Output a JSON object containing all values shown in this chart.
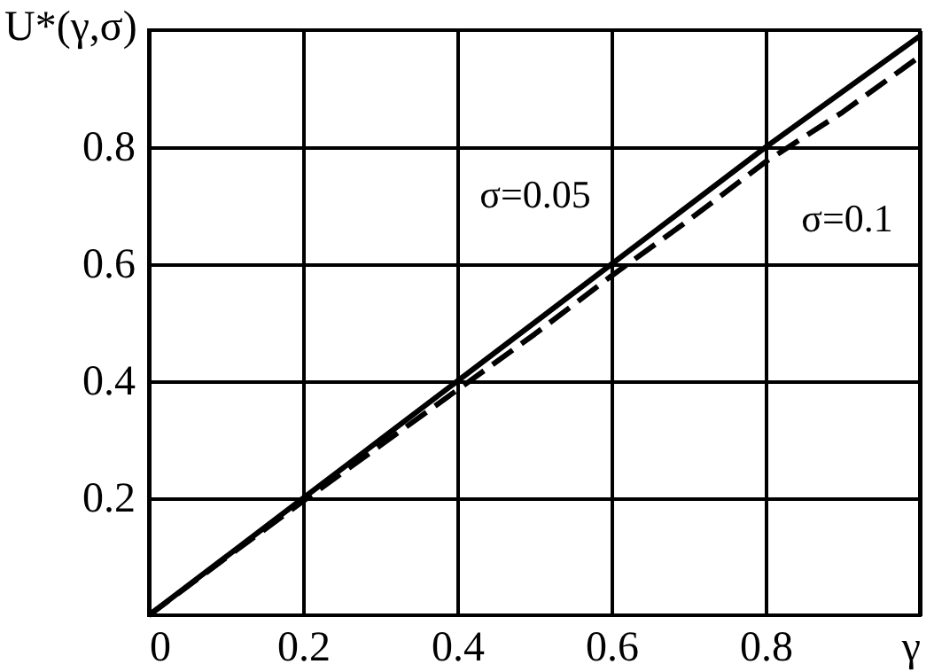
{
  "chart_data": {
    "type": "line",
    "ylabel": "U*(γ,σ)",
    "xlim": [
      0,
      1
    ],
    "ylim": [
      0,
      1
    ],
    "xticks": [
      0,
      0.2,
      0.4,
      0.6,
      0.8,
      {
        "value": 1,
        "label": "γ"
      }
    ],
    "yticks": [
      0.2,
      0.4,
      0.6,
      0.8
    ],
    "grid": true,
    "legend": false,
    "series": [
      {
        "name": "σ=0.05",
        "color": "#000000",
        "line_style": "solid",
        "x": [
          0,
          0.1,
          0.2,
          0.3,
          0.4,
          0.5,
          0.6,
          0.7,
          0.8,
          0.9,
          1.0
        ],
        "values": [
          0,
          0.1,
          0.2,
          0.3,
          0.4,
          0.5,
          0.6,
          0.7,
          0.8,
          0.895,
          0.99
        ]
      },
      {
        "name": "σ=0.1",
        "color": "#000000",
        "line_style": "dashed",
        "x": [
          0,
          0.1,
          0.2,
          0.3,
          0.4,
          0.5,
          0.6,
          0.7,
          0.8,
          0.9,
          1.0
        ],
        "values": [
          0,
          0.098,
          0.195,
          0.29,
          0.385,
          0.48,
          0.58,
          0.675,
          0.775,
          0.86,
          0.955
        ]
      }
    ]
  }
}
